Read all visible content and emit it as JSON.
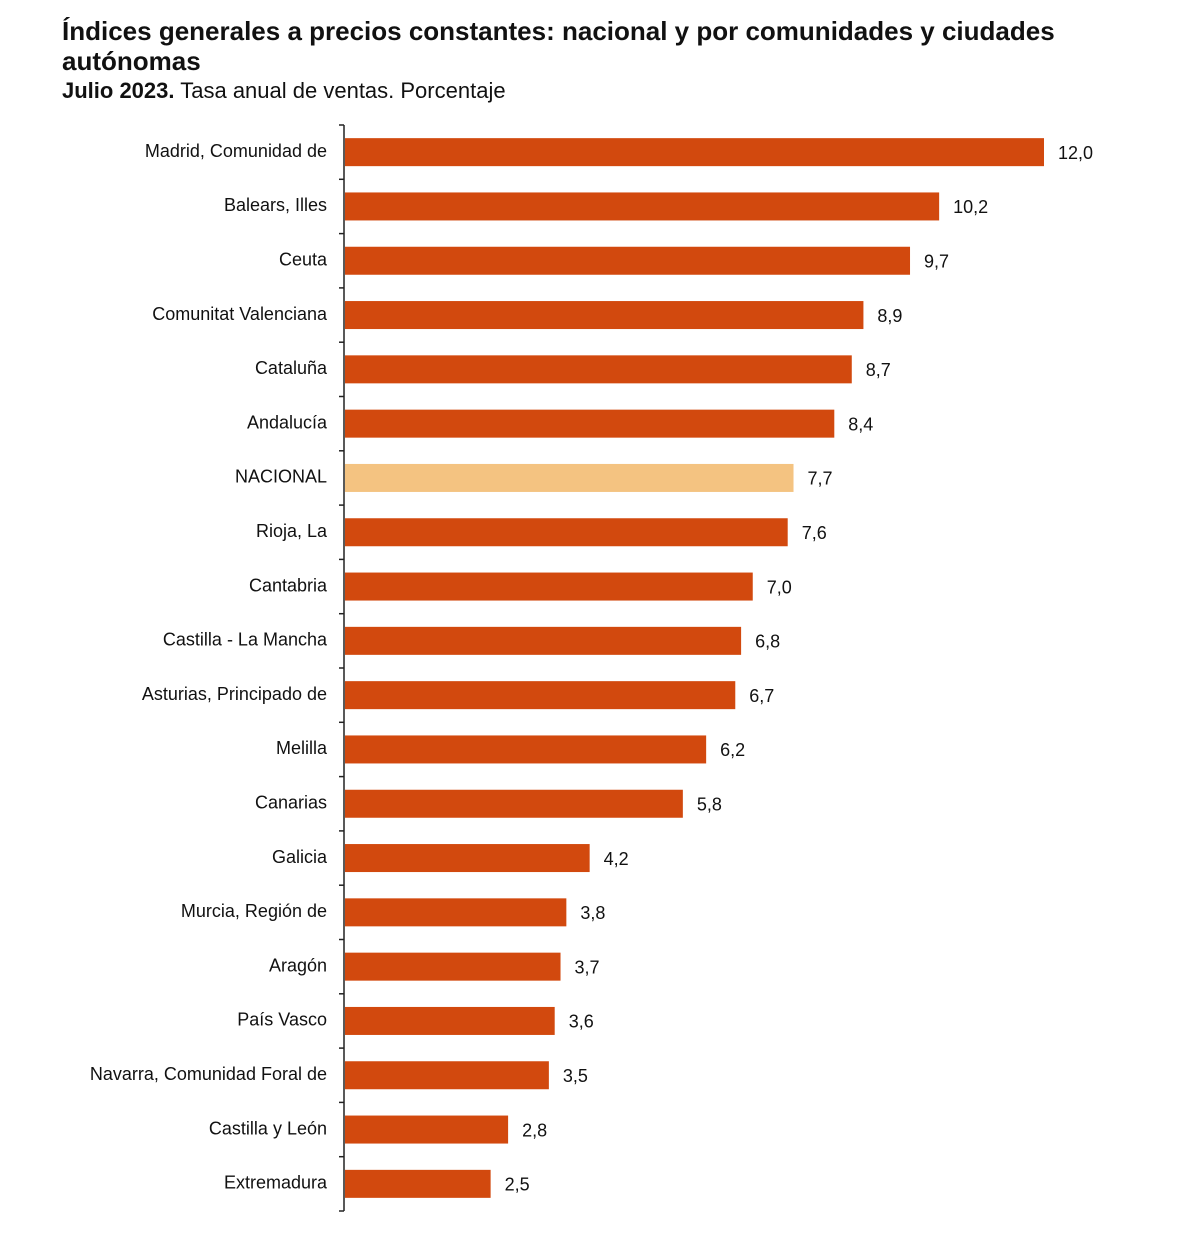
{
  "chart_data": {
    "type": "hbar",
    "title": "Índices generales a precios constantes: nacional y por comunidades y ciudades autónomas",
    "subtitle_bold": "Julio 2023.",
    "subtitle": "Tasa anual de ventas. Porcentaje",
    "categories": [
      "Madrid, Comunidad de",
      "Balears, Illes",
      "Ceuta",
      "Comunitat Valenciana",
      "Cataluña",
      "Andalucía",
      "NACIONAL",
      "Rioja, La",
      "Cantabria",
      "Castilla - La Mancha",
      "Asturias, Principado de",
      "Melilla",
      "Canarias",
      "Galicia",
      "Murcia, Región de",
      "Aragón",
      "País Vasco",
      "Navarra, Comunidad Foral de",
      "Castilla y León",
      "Extremadura"
    ],
    "values": [
      12.0,
      10.2,
      9.7,
      8.9,
      8.7,
      8.4,
      7.7,
      7.6,
      7.0,
      6.8,
      6.7,
      6.2,
      5.8,
      4.2,
      3.8,
      3.7,
      3.6,
      3.5,
      2.8,
      2.5
    ],
    "value_labels": [
      "12,0",
      "10,2",
      "9,7",
      "8,9",
      "8,7",
      "8,4",
      "7,7",
      "7,6",
      "7,0",
      "6,8",
      "6,7",
      "6,2",
      "5,8",
      "4,2",
      "3,8",
      "3,7",
      "3,6",
      "3,5",
      "2,8",
      "2,5"
    ],
    "colors": [
      "#d2490e",
      "#d2490e",
      "#d2490e",
      "#d2490e",
      "#d2490e",
      "#d2490e",
      "#f4c381",
      "#d2490e",
      "#d2490e",
      "#d2490e",
      "#d2490e",
      "#d2490e",
      "#d2490e",
      "#d2490e",
      "#d2490e",
      "#d2490e",
      "#d2490e",
      "#d2490e",
      "#d2490e",
      "#d2490e"
    ]
  }
}
